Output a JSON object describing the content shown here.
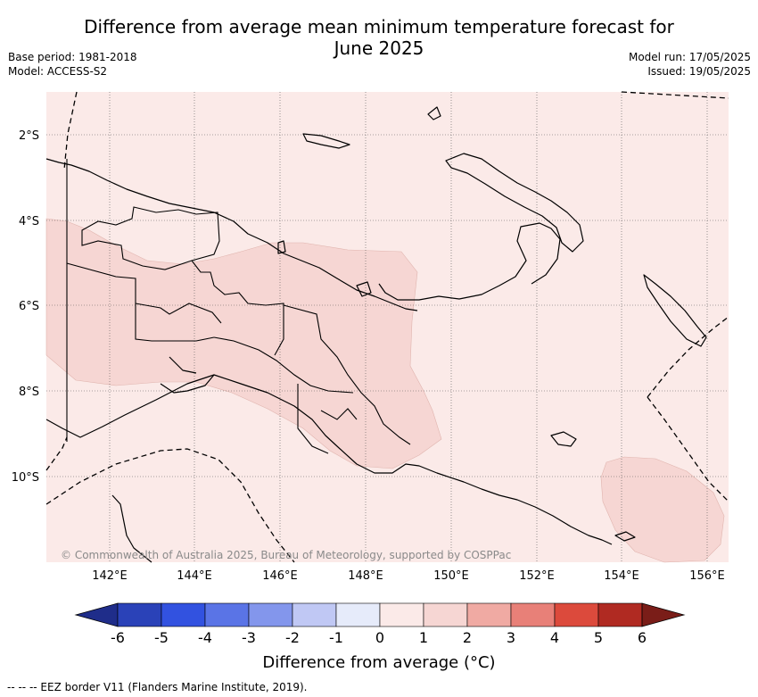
{
  "title_line1": "Difference from average mean minimum temperature forecast for",
  "title_line2": "June 2025",
  "base_period": "Base period: 1981-2018",
  "model": "Model: ACCESS-S2",
  "model_run": "Model run: 17/05/2025",
  "issued": "Issued: 19/05/2025",
  "credit": "© Commonwealth of Australia 2025, Bureau of Meteorology, supported by COSPPac",
  "lat_labels": [
    "2°S",
    "4°S",
    "6°S",
    "8°S",
    "10°S"
  ],
  "lon_labels": [
    "142°E",
    "144°E",
    "146°E",
    "148°E",
    "150°E",
    "152°E",
    "154°E",
    "156°E"
  ],
  "colorbar": {
    "ticks": [
      "-6",
      "-5",
      "-4",
      "-3",
      "-2",
      "-1",
      "0",
      "1",
      "2",
      "3",
      "4",
      "5",
      "6"
    ],
    "colors": [
      "#1f2d8a",
      "#2a42b8",
      "#3252e0",
      "#5a74e6",
      "#8396ec",
      "#c0c8f4",
      "#e6ebfa",
      "#fbeae8",
      "#f6d6d3",
      "#f0aaa3",
      "#e88078",
      "#dc4a3c",
      "#b02a22",
      "#7a1d18"
    ],
    "label": "Difference from average (°C)"
  },
  "legend_footnote": "--  --  -- EEZ border V11 (Flanders Marine Institute, 2019).",
  "colors": {
    "ocean_background": "#fbeae8",
    "positive_anomaly_area": "#f6d6d3"
  }
}
